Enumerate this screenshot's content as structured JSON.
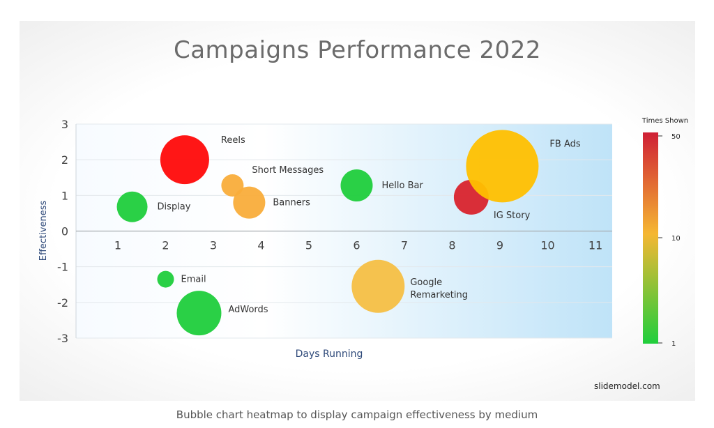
{
  "page": {
    "title": "Campaigns Performance 2022",
    "watermark": "slidemodel.com",
    "caption": "Bubble chart heatmap to display campaign effectiveness by medium"
  },
  "chart_data": {
    "type": "scatter",
    "subtype": "bubble",
    "title": "Campaigns Performance 2022",
    "xlabel": "Days Running",
    "ylabel": "Effectiveness",
    "xlim": [
      0,
      11
    ],
    "ylim": [
      -3,
      3
    ],
    "x_ticks": [
      1,
      2,
      3,
      4,
      5,
      6,
      7,
      8,
      9,
      10,
      11
    ],
    "y_ticks": [
      3,
      2,
      1,
      0,
      -1,
      -2,
      -3
    ],
    "size_and_color": "times_shown",
    "colorbar": {
      "title": "Times Shown",
      "ticks": [
        50,
        10,
        1
      ],
      "colors": [
        "#e0262f",
        "#f5b733",
        "#1fce3c"
      ],
      "scale": "log"
    },
    "points": [
      {
        "label": "Reels",
        "x": 2.4,
        "y": 2.0,
        "times_shown": 30,
        "color": "#ff0a0a"
      },
      {
        "label": "Short Messages",
        "x": 3.4,
        "y": 1.28,
        "times_shown": 11,
        "color": "#f9ad3b"
      },
      {
        "label": "Banners",
        "x": 3.75,
        "y": 0.8,
        "times_shown": 12,
        "color": "#f9ad3b"
      },
      {
        "label": "Display",
        "x": 1.3,
        "y": 0.68,
        "times_shown": 3,
        "color": "#1fce3c"
      },
      {
        "label": "Hello Bar",
        "x": 6.0,
        "y": 1.28,
        "times_shown": 3,
        "color": "#1fce3c"
      },
      {
        "label": "IG Story",
        "x": 8.4,
        "y": 0.95,
        "times_shown": 40,
        "color": "#d9232d"
      },
      {
        "label": "FB Ads",
        "x": 9.05,
        "y": 1.82,
        "times_shown": 14,
        "color": "#ffc000"
      },
      {
        "label": "Email",
        "x": 2.0,
        "y": -1.35,
        "times_shown": 1,
        "color": "#1fce3c"
      },
      {
        "label": "AdWords",
        "x": 2.7,
        "y": -2.3,
        "times_shown": 2,
        "color": "#1fce3c"
      },
      {
        "label": "Google Remarketing",
        "x": 6.45,
        "y": -1.55,
        "times_shown": 9,
        "color": "#f5bf45"
      }
    ]
  }
}
